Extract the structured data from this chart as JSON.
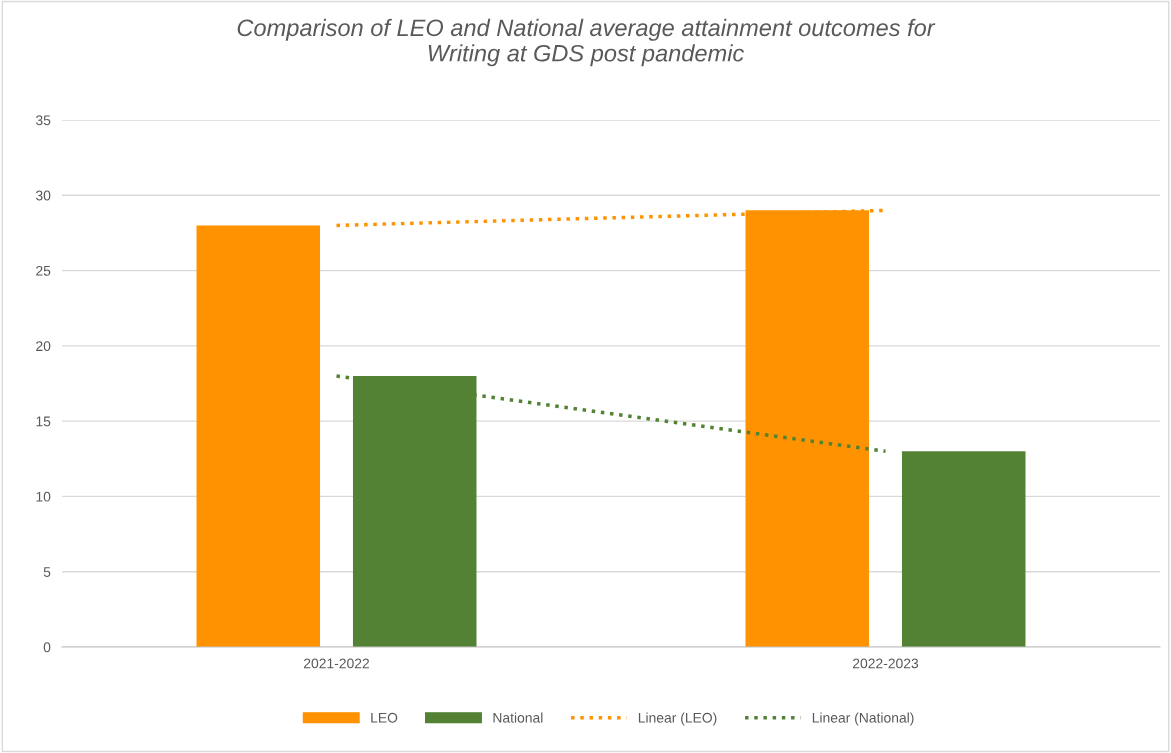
{
  "chart_data": {
    "type": "bar",
    "title": "Comparison of LEO and National average attainment outcomes for\nWriting at GDS post pandemic",
    "categories": [
      "2021-2022",
      "2022-2023"
    ],
    "series": [
      {
        "name": "LEO",
        "color": "#fe9200",
        "values": [
          28,
          29
        ]
      },
      {
        "name": "National",
        "color": "#548235",
        "values": [
          18,
          13
        ]
      },
      {
        "name": "Linear (LEO)",
        "type": "line",
        "line_style": "dotted",
        "color": "#fe9200",
        "x": [
          "2021-2022",
          "2022-2023"
        ],
        "values": [
          28,
          29
        ]
      },
      {
        "name": "Linear (National)",
        "type": "line",
        "line_style": "dotted",
        "color": "#548235",
        "x": [
          "2021-2022",
          "2022-2023"
        ],
        "values": [
          18,
          13
        ]
      }
    ],
    "ylim": [
      0,
      35
    ],
    "yticks": [
      0,
      5,
      10,
      15,
      20,
      25,
      30,
      35
    ],
    "grid": "y",
    "legend": "bottom"
  }
}
